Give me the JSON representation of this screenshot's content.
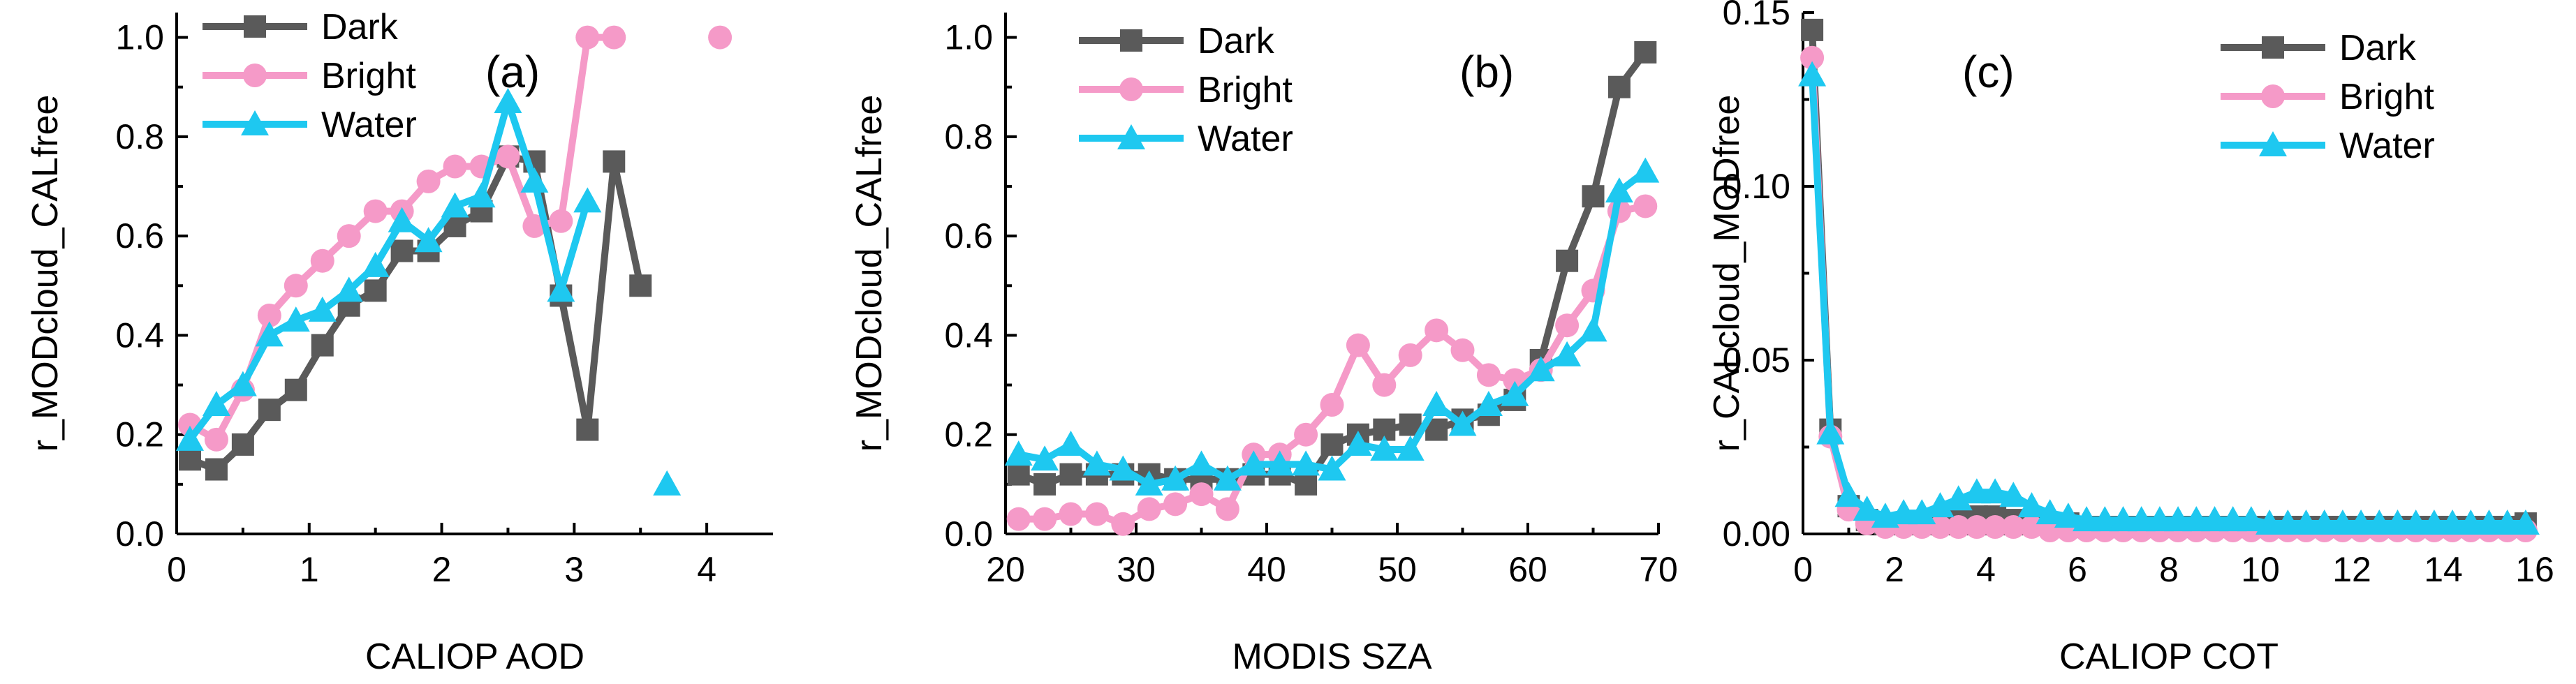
{
  "chart_data": [
    {
      "type": "line",
      "panel_label": "(a)",
      "xlabel": "CALIOP AOD",
      "ylabel": "r_MODcloud_CALfree",
      "xlim": [
        0,
        4.5
      ],
      "ylim": [
        0,
        1.05
      ],
      "xticks": [
        0,
        1,
        2,
        3,
        4
      ],
      "yticks": [
        0.0,
        0.2,
        0.4,
        0.6,
        0.8,
        1.0
      ],
      "ytick_labels": [
        "0.0",
        "0.2",
        "0.4",
        "0.6",
        "0.8",
        "1.0"
      ],
      "legend_position": "top-left",
      "series": [
        {
          "name": "Dark",
          "color": "#5a5a5a",
          "marker": "square",
          "points": [
            [
              0.1,
              0.15
            ],
            [
              0.3,
              0.13
            ],
            [
              0.5,
              0.18
            ],
            [
              0.7,
              0.25
            ],
            [
              0.9,
              0.29
            ],
            [
              1.1,
              0.38
            ],
            [
              1.3,
              0.46
            ],
            [
              1.5,
              0.49
            ],
            [
              1.7,
              0.57
            ],
            [
              1.9,
              0.57
            ],
            [
              2.1,
              0.62
            ],
            [
              2.3,
              0.65
            ],
            [
              2.5,
              0.76
            ],
            [
              2.7,
              0.75
            ],
            [
              2.9,
              0.48
            ],
            [
              3.1,
              0.21
            ],
            [
              3.3,
              0.75
            ],
            [
              3.5,
              0.5
            ]
          ]
        },
        {
          "name": "Bright",
          "color": "#f59ac8",
          "marker": "circle",
          "points": [
            [
              0.1,
              0.22
            ],
            [
              0.3,
              0.19
            ],
            [
              0.5,
              0.29
            ],
            [
              0.7,
              0.44
            ],
            [
              0.9,
              0.5
            ],
            [
              1.1,
              0.55
            ],
            [
              1.3,
              0.6
            ],
            [
              1.5,
              0.65
            ],
            [
              1.7,
              0.65
            ],
            [
              1.9,
              0.71
            ],
            [
              2.1,
              0.74
            ],
            [
              2.3,
              0.74
            ],
            [
              2.5,
              0.76
            ],
            [
              2.7,
              0.62
            ],
            [
              2.9,
              0.63
            ],
            [
              3.1,
              1.0
            ],
            [
              3.3,
              1.0
            ],
            [
              4.1,
              1.0
            ]
          ],
          "breaks_after_index": [
            16
          ]
        },
        {
          "name": "Water",
          "color": "#1ec8f0",
          "marker": "triangle",
          "points": [
            [
              0.1,
              0.19
            ],
            [
              0.3,
              0.26
            ],
            [
              0.5,
              0.3
            ],
            [
              0.7,
              0.4
            ],
            [
              0.9,
              0.43
            ],
            [
              1.1,
              0.45
            ],
            [
              1.3,
              0.49
            ],
            [
              1.5,
              0.54
            ],
            [
              1.7,
              0.63
            ],
            [
              1.9,
              0.59
            ],
            [
              2.1,
              0.66
            ],
            [
              2.3,
              0.68
            ],
            [
              2.5,
              0.87
            ],
            [
              2.7,
              0.71
            ],
            [
              2.9,
              0.49
            ],
            [
              3.1,
              0.67
            ],
            [
              3.7,
              0.1
            ]
          ],
          "breaks_after_index": [
            15
          ]
        }
      ]
    },
    {
      "type": "line",
      "panel_label": "(b)",
      "xlabel": "MODIS SZA",
      "ylabel": "r_MODcloud_CALfree",
      "xlim": [
        20,
        70
      ],
      "ylim": [
        0,
        1.05
      ],
      "xticks": [
        20,
        30,
        40,
        50,
        60,
        70
      ],
      "yticks": [
        0.0,
        0.2,
        0.4,
        0.6,
        0.8,
        1.0
      ],
      "ytick_labels": [
        "0.0",
        "0.2",
        "0.4",
        "0.6",
        "0.8",
        "1.0"
      ],
      "legend_position": "top-left",
      "series": [
        {
          "name": "Dark",
          "color": "#5a5a5a",
          "marker": "square",
          "points": [
            [
              21,
              0.12
            ],
            [
              23,
              0.1
            ],
            [
              25,
              0.12
            ],
            [
              27,
              0.12
            ],
            [
              29,
              0.12
            ],
            [
              31,
              0.12
            ],
            [
              33,
              0.11
            ],
            [
              35,
              0.11
            ],
            [
              37,
              0.11
            ],
            [
              39,
              0.12
            ],
            [
              41,
              0.12
            ],
            [
              43,
              0.1
            ],
            [
              45,
              0.18
            ],
            [
              47,
              0.2
            ],
            [
              49,
              0.21
            ],
            [
              51,
              0.22
            ],
            [
              53,
              0.21
            ],
            [
              55,
              0.23
            ],
            [
              57,
              0.24
            ],
            [
              59,
              0.27
            ],
            [
              61,
              0.35
            ],
            [
              63,
              0.55
            ],
            [
              65,
              0.68
            ],
            [
              67,
              0.9
            ],
            [
              69,
              0.97
            ]
          ]
        },
        {
          "name": "Bright",
          "color": "#f59ac8",
          "marker": "circle",
          "points": [
            [
              21,
              0.03
            ],
            [
              23,
              0.03
            ],
            [
              25,
              0.04
            ],
            [
              27,
              0.04
            ],
            [
              29,
              0.02
            ],
            [
              31,
              0.05
            ],
            [
              33,
              0.06
            ],
            [
              35,
              0.08
            ],
            [
              37,
              0.05
            ],
            [
              39,
              0.16
            ],
            [
              41,
              0.16
            ],
            [
              43,
              0.2
            ],
            [
              45,
              0.26
            ],
            [
              47,
              0.38
            ],
            [
              49,
              0.3
            ],
            [
              51,
              0.36
            ],
            [
              53,
              0.41
            ],
            [
              55,
              0.37
            ],
            [
              57,
              0.32
            ],
            [
              59,
              0.31
            ],
            [
              61,
              0.33
            ],
            [
              63,
              0.42
            ],
            [
              65,
              0.49
            ],
            [
              67,
              0.65
            ],
            [
              69,
              0.66
            ]
          ]
        },
        {
          "name": "Water",
          "color": "#1ec8f0",
          "marker": "triangle",
          "points": [
            [
              21,
              0.16
            ],
            [
              23,
              0.15
            ],
            [
              25,
              0.18
            ],
            [
              27,
              0.14
            ],
            [
              29,
              0.13
            ],
            [
              31,
              0.1
            ],
            [
              33,
              0.11
            ],
            [
              35,
              0.14
            ],
            [
              37,
              0.11
            ],
            [
              39,
              0.14
            ],
            [
              41,
              0.14
            ],
            [
              43,
              0.14
            ],
            [
              45,
              0.13
            ],
            [
              47,
              0.18
            ],
            [
              49,
              0.17
            ],
            [
              51,
              0.17
            ],
            [
              53,
              0.26
            ],
            [
              55,
              0.22
            ],
            [
              57,
              0.26
            ],
            [
              59,
              0.28
            ],
            [
              61,
              0.33
            ],
            [
              63,
              0.36
            ],
            [
              65,
              0.41
            ],
            [
              67,
              0.69
            ],
            [
              69,
              0.73
            ]
          ]
        }
      ]
    },
    {
      "type": "line",
      "panel_label": "(c)",
      "xlabel": "CALIOP COT",
      "ylabel": "r_CALcloud_MODfree",
      "xlim": [
        0,
        16
      ],
      "ylim": [
        0,
        0.15
      ],
      "xticks": [
        0,
        2,
        4,
        6,
        8,
        10,
        12,
        14,
        16
      ],
      "yticks": [
        0.0,
        0.05,
        0.1,
        0.15
      ],
      "ytick_labels": [
        "0.00",
        "0.05",
        "0.10",
        "0.15"
      ],
      "legend_position": "top-right",
      "series": [
        {
          "name": "Dark",
          "color": "#5a5a5a",
          "marker": "square",
          "points": [
            [
              0.2,
              0.145
            ],
            [
              0.6,
              0.03
            ],
            [
              1.0,
              0.008
            ],
            [
              1.4,
              0.004
            ],
            [
              1.8,
              0.003
            ],
            [
              2.2,
              0.003
            ],
            [
              2.6,
              0.003
            ],
            [
              3.0,
              0.004
            ],
            [
              3.4,
              0.004
            ],
            [
              3.8,
              0.005
            ],
            [
              4.2,
              0.005
            ],
            [
              4.6,
              0.004
            ],
            [
              5.0,
              0.003
            ],
            [
              5.4,
              0.003
            ],
            [
              5.8,
              0.003
            ],
            [
              6.2,
              0.002
            ],
            [
              6.6,
              0.002
            ],
            [
              7.0,
              0.002
            ],
            [
              7.4,
              0.002
            ],
            [
              7.8,
              0.002
            ],
            [
              8.2,
              0.002
            ],
            [
              8.6,
              0.002
            ],
            [
              9.0,
              0.002
            ],
            [
              9.4,
              0.002
            ],
            [
              9.8,
              0.002
            ],
            [
              10.2,
              0.002
            ],
            [
              10.6,
              0.002
            ],
            [
              11.0,
              0.002
            ],
            [
              11.4,
              0.002
            ],
            [
              11.8,
              0.002
            ],
            [
              12.2,
              0.002
            ],
            [
              12.6,
              0.002
            ],
            [
              13.0,
              0.002
            ],
            [
              13.4,
              0.002
            ],
            [
              13.8,
              0.002
            ],
            [
              14.2,
              0.002
            ],
            [
              14.6,
              0.002
            ],
            [
              15.0,
              0.002
            ],
            [
              15.4,
              0.002
            ],
            [
              15.8,
              0.003
            ]
          ]
        },
        {
          "name": "Bright",
          "color": "#f59ac8",
          "marker": "circle",
          "points": [
            [
              0.2,
              0.137
            ],
            [
              0.6,
              0.028
            ],
            [
              1.0,
              0.007
            ],
            [
              1.4,
              0.003
            ],
            [
              1.8,
              0.002
            ],
            [
              2.2,
              0.002
            ],
            [
              2.6,
              0.002
            ],
            [
              3.0,
              0.002
            ],
            [
              3.4,
              0.002
            ],
            [
              3.8,
              0.002
            ],
            [
              4.2,
              0.002
            ],
            [
              4.6,
              0.002
            ],
            [
              5.0,
              0.002
            ],
            [
              5.4,
              0.001
            ],
            [
              5.8,
              0.001
            ],
            [
              6.2,
              0.001
            ],
            [
              6.6,
              0.001
            ],
            [
              7.0,
              0.001
            ],
            [
              7.4,
              0.001
            ],
            [
              7.8,
              0.001
            ],
            [
              8.2,
              0.001
            ],
            [
              8.6,
              0.001
            ],
            [
              9.0,
              0.001
            ],
            [
              9.4,
              0.001
            ],
            [
              9.8,
              0.001
            ],
            [
              10.2,
              0.001
            ],
            [
              10.6,
              0.001
            ],
            [
              11.0,
              0.001
            ],
            [
              11.4,
              0.001
            ],
            [
              11.8,
              0.001
            ],
            [
              12.2,
              0.001
            ],
            [
              12.6,
              0.001
            ],
            [
              13.0,
              0.001
            ],
            [
              13.4,
              0.001
            ],
            [
              13.8,
              0.001
            ],
            [
              14.2,
              0.001
            ],
            [
              14.6,
              0.001
            ],
            [
              15.0,
              0.001
            ],
            [
              15.4,
              0.001
            ],
            [
              15.8,
              0.001
            ]
          ]
        },
        {
          "name": "Water",
          "color": "#1ec8f0",
          "marker": "triangle",
          "points": [
            [
              0.2,
              0.132
            ],
            [
              0.6,
              0.029
            ],
            [
              1.0,
              0.011
            ],
            [
              1.4,
              0.007
            ],
            [
              1.8,
              0.005
            ],
            [
              2.2,
              0.006
            ],
            [
              2.6,
              0.006
            ],
            [
              3.0,
              0.008
            ],
            [
              3.4,
              0.01
            ],
            [
              3.8,
              0.012
            ],
            [
              4.2,
              0.012
            ],
            [
              4.6,
              0.011
            ],
            [
              5.0,
              0.008
            ],
            [
              5.4,
              0.006
            ],
            [
              5.8,
              0.005
            ],
            [
              6.2,
              0.004
            ],
            [
              6.6,
              0.004
            ],
            [
              7.0,
              0.004
            ],
            [
              7.4,
              0.004
            ],
            [
              7.8,
              0.004
            ],
            [
              8.2,
              0.004
            ],
            [
              8.6,
              0.004
            ],
            [
              9.0,
              0.004
            ],
            [
              9.4,
              0.004
            ],
            [
              9.8,
              0.004
            ],
            [
              10.2,
              0.003
            ],
            [
              10.6,
              0.003
            ],
            [
              11.0,
              0.003
            ],
            [
              11.4,
              0.003
            ],
            [
              11.8,
              0.003
            ],
            [
              12.2,
              0.003
            ],
            [
              12.6,
              0.003
            ],
            [
              13.0,
              0.003
            ],
            [
              13.4,
              0.003
            ],
            [
              13.8,
              0.003
            ],
            [
              14.2,
              0.003
            ],
            [
              14.6,
              0.003
            ],
            [
              15.0,
              0.003
            ],
            [
              15.4,
              0.003
            ],
            [
              15.8,
              0.003
            ]
          ]
        }
      ]
    }
  ]
}
